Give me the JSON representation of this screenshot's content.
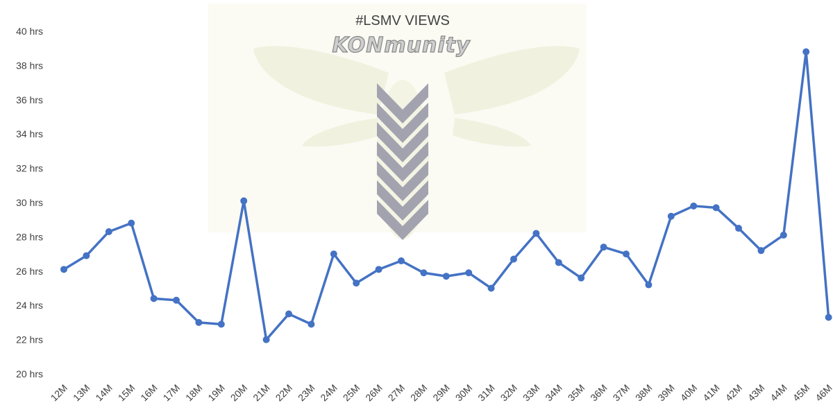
{
  "chart_data": {
    "type": "line",
    "title": "#LSMV VIEWS",
    "watermark_text": "KONmunity",
    "categories": [
      "12M",
      "13M",
      "14M",
      "15M",
      "16M",
      "17M",
      "18M",
      "19M",
      "20M",
      "21M",
      "22M",
      "23M",
      "24M",
      "25M",
      "26M",
      "27M",
      "28M",
      "29M",
      "30M",
      "31M",
      "32M",
      "33M",
      "34M",
      "35M",
      "36M",
      "37M",
      "38M",
      "39M",
      "40M",
      "41M",
      "42M",
      "43M",
      "44M",
      "45M",
      "46M"
    ],
    "series": [
      {
        "values": [
          26.1,
          26.9,
          28.3,
          28.8,
          24.4,
          24.3,
          23.0,
          22.9,
          30.1,
          22.0,
          23.5,
          22.9,
          27.0,
          25.3,
          26.1,
          26.6,
          25.9,
          25.7,
          25.9,
          25.0,
          26.7,
          28.2,
          26.5,
          25.6,
          27.4,
          27.0,
          25.2,
          29.2,
          29.8,
          29.7,
          28.5,
          27.2,
          28.1,
          38.8,
          23.3
        ],
        "color": "#4472C4"
      }
    ],
    "y_ticks": [
      "20 hrs",
      "22 hrs",
      "24 hrs",
      "26 hrs",
      "28 hrs",
      "30 hrs",
      "32 hrs",
      "34 hrs",
      "36 hrs",
      "38 hrs",
      "40 hrs"
    ],
    "ylim": [
      20,
      40
    ],
    "y_unit": "hrs",
    "grid": false,
    "legend": "none"
  }
}
